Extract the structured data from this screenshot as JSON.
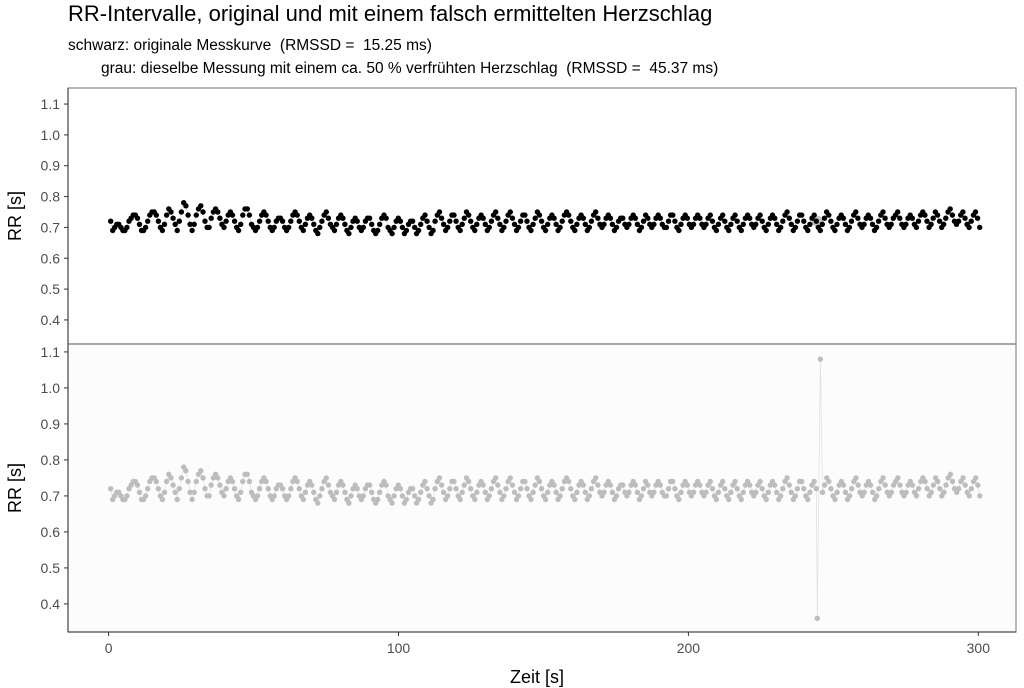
{
  "chart_data": [
    {
      "type": "scatter",
      "title": "RR-Intervalle, original und mit einem falsch ermittelten Herzschlag",
      "subtitle_lines": [
        "schwarz: originale Messkurve  (RMSSD =  15.25 ms)",
        "grau: dieselbe Messung mit einem ca. 50 % verfrühten Herzschlag  (RMSSD =  45.37 ms)"
      ],
      "xlabel": "Zeit [s]",
      "ylabel": "RR [s]",
      "xlim": [
        -14,
        313
      ],
      "x_ticks": [
        "0",
        "100",
        "200",
        "300"
      ],
      "y_ticks": [
        "0.4",
        "0.5",
        "0.6",
        "0.7",
        "0.8",
        "0.9",
        "1.0",
        "1.1"
      ],
      "panels": [
        {
          "ylim": [
            0.322,
            1.152
          ],
          "series": "original",
          "color": "#000000",
          "highlight": {
            "time": 244.5,
            "rr": 0.72,
            "color": "#c4c4c4"
          }
        },
        {
          "ylim": [
            0.322,
            1.122
          ],
          "series": "modified",
          "color": "#bdbdbd"
        }
      ],
      "grid": false,
      "rr_original": [
        0.72,
        0.69,
        0.7,
        0.71,
        0.71,
        0.7,
        0.69,
        0.69,
        0.7,
        0.72,
        0.73,
        0.74,
        0.74,
        0.73,
        0.71,
        0.69,
        0.69,
        0.7,
        0.72,
        0.74,
        0.75,
        0.75,
        0.74,
        0.72,
        0.7,
        0.69,
        0.71,
        0.74,
        0.76,
        0.75,
        0.73,
        0.71,
        0.69,
        0.72,
        0.75,
        0.78,
        0.77,
        0.74,
        0.71,
        0.69,
        0.71,
        0.74,
        0.76,
        0.77,
        0.75,
        0.72,
        0.7,
        0.7,
        0.73,
        0.75,
        0.76,
        0.75,
        0.73,
        0.71,
        0.7,
        0.72,
        0.74,
        0.75,
        0.74,
        0.72,
        0.7,
        0.69,
        0.71,
        0.74,
        0.76,
        0.76,
        0.74,
        0.71,
        0.7,
        0.69,
        0.7,
        0.72,
        0.74,
        0.75,
        0.74,
        0.72,
        0.7,
        0.69,
        0.7,
        0.72,
        0.73,
        0.73,
        0.72,
        0.7,
        0.69,
        0.7,
        0.72,
        0.74,
        0.75,
        0.74,
        0.72,
        0.7,
        0.69,
        0.71,
        0.73,
        0.74,
        0.73,
        0.71,
        0.69,
        0.68,
        0.7,
        0.72,
        0.74,
        0.75,
        0.73,
        0.71,
        0.7,
        0.69,
        0.71,
        0.73,
        0.74,
        0.73,
        0.71,
        0.69,
        0.68,
        0.7,
        0.72,
        0.73,
        0.72,
        0.7,
        0.69,
        0.7,
        0.72,
        0.73,
        0.73,
        0.71,
        0.69,
        0.68,
        0.69,
        0.71,
        0.73,
        0.74,
        0.73,
        0.7,
        0.69,
        0.68,
        0.7,
        0.72,
        0.73,
        0.72,
        0.7,
        0.68,
        0.69,
        0.71,
        0.72,
        0.72,
        0.7,
        0.68,
        0.69,
        0.71,
        0.73,
        0.74,
        0.72,
        0.7,
        0.68,
        0.69,
        0.72,
        0.74,
        0.75,
        0.73,
        0.71,
        0.69,
        0.7,
        0.72,
        0.74,
        0.74,
        0.72,
        0.7,
        0.69,
        0.71,
        0.73,
        0.75,
        0.74,
        0.72,
        0.7,
        0.69,
        0.71,
        0.73,
        0.74,
        0.73,
        0.71,
        0.69,
        0.7,
        0.72,
        0.74,
        0.75,
        0.73,
        0.71,
        0.69,
        0.7,
        0.72,
        0.74,
        0.75,
        0.73,
        0.71,
        0.69,
        0.7,
        0.72,
        0.74,
        0.74,
        0.72,
        0.7,
        0.69,
        0.71,
        0.73,
        0.75,
        0.74,
        0.72,
        0.7,
        0.69,
        0.71,
        0.73,
        0.74,
        0.73,
        0.71,
        0.69,
        0.7,
        0.72,
        0.74,
        0.75,
        0.74,
        0.72,
        0.7,
        0.69,
        0.71,
        0.73,
        0.74,
        0.73,
        0.71,
        0.69,
        0.7,
        0.72,
        0.74,
        0.75,
        0.73,
        0.71,
        0.7,
        0.71,
        0.73,
        0.74,
        0.73,
        0.71,
        0.69,
        0.7,
        0.72,
        0.73,
        0.73,
        0.71,
        0.7,
        0.71,
        0.73,
        0.74,
        0.73,
        0.71,
        0.69,
        0.7,
        0.72,
        0.74,
        0.73,
        0.71,
        0.7,
        0.71,
        0.73,
        0.74,
        0.73,
        0.71,
        0.7,
        0.7,
        0.72,
        0.74,
        0.74,
        0.72,
        0.7,
        0.69,
        0.71,
        0.73,
        0.74,
        0.73,
        0.71,
        0.7,
        0.71,
        0.73,
        0.74,
        0.73,
        0.71,
        0.7,
        0.71,
        0.73,
        0.74,
        0.72,
        0.7,
        0.69,
        0.71,
        0.73,
        0.74,
        0.72,
        0.7,
        0.69,
        0.71,
        0.73,
        0.74,
        0.72,
        0.7,
        0.69,
        0.71,
        0.73,
        0.74,
        0.73,
        0.71,
        0.7,
        0.71,
        0.73,
        0.74,
        0.72,
        0.7,
        0.69,
        0.71,
        0.73,
        0.74,
        0.73,
        0.71,
        0.69,
        0.7,
        0.72,
        0.74,
        0.75,
        0.73,
        0.71,
        0.69,
        0.7,
        0.72,
        0.74,
        0.74,
        0.72,
        0.7,
        0.69,
        0.71,
        0.73,
        0.74,
        0.72,
        0.7,
        0.69,
        0.71,
        0.73,
        0.75,
        0.74,
        0.72,
        0.7,
        0.69,
        0.71,
        0.73,
        0.74,
        0.73,
        0.71,
        0.69,
        0.7,
        0.72,
        0.74,
        0.75,
        0.73,
        0.71,
        0.7,
        0.71,
        0.73,
        0.74,
        0.73,
        0.71,
        0.69,
        0.7,
        0.72,
        0.74,
        0.75,
        0.73,
        0.71,
        0.7,
        0.71,
        0.73,
        0.74,
        0.75,
        0.73,
        0.71,
        0.7,
        0.71,
        0.73,
        0.74,
        0.73,
        0.71,
        0.7,
        0.72,
        0.74,
        0.75,
        0.74,
        0.72,
        0.7,
        0.71,
        0.73,
        0.75,
        0.74,
        0.72,
        0.7,
        0.71,
        0.73,
        0.75,
        0.76,
        0.74,
        0.72,
        0.71,
        0.72,
        0.74,
        0.75,
        0.73,
        0.71,
        0.7,
        0.72,
        0.74,
        0.75,
        0.73,
        0.7
      ],
      "modification": {
        "index": 340,
        "rr_values": [
          0.36,
          1.08
        ]
      }
    }
  ]
}
